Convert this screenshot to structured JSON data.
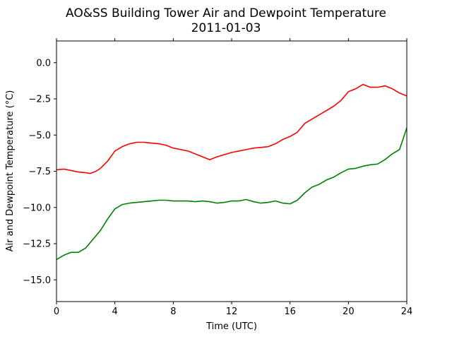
{
  "chart_data": {
    "type": "line",
    "title": "AO&SS Building Tower Air and Dewpoint Temperature",
    "subtitle": "2011-01-03",
    "xlabel": "Time (UTC)",
    "ylabel": "Air and Dewpoint Temperature (°C)",
    "xlim": [
      0,
      24
    ],
    "ylim": [
      -16.5,
      1.5
    ],
    "xticks": [
      0,
      4,
      8,
      12,
      16,
      20,
      24
    ],
    "xtick_labels": [
      "0",
      "4",
      "8",
      "12",
      "16",
      "20",
      "24"
    ],
    "yticks": [
      0.0,
      -2.5,
      -5.0,
      -7.5,
      -10.0,
      -12.5,
      -15.0
    ],
    "ytick_labels": [
      "0.0",
      "−2.5",
      "−5.0",
      "−7.5",
      "−10.0",
      "−12.5",
      "−15.0"
    ],
    "grid": false,
    "legend": "none",
    "series": [
      {
        "color": "#ff0000",
        "x": [
          0,
          0.5,
          1,
          1.5,
          2,
          2.3,
          2.7,
          3,
          3.5,
          4,
          4.5,
          5,
          5.5,
          6,
          6.5,
          7,
          7.5,
          8,
          8.5,
          9,
          9.5,
          10,
          10.5,
          11,
          11.5,
          12,
          12.5,
          13,
          13.5,
          14,
          14.5,
          15,
          15.5,
          16,
          16.5,
          17,
          17.5,
          18,
          18.5,
          19,
          19.5,
          20,
          20.5,
          21,
          21.5,
          22,
          22.5,
          23,
          23.5,
          24
        ],
        "y": [
          -7.4,
          -7.35,
          -7.45,
          -7.55,
          -7.6,
          -7.65,
          -7.5,
          -7.3,
          -6.8,
          -6.1,
          -5.8,
          -5.6,
          -5.5,
          -5.5,
          -5.55,
          -5.6,
          -5.7,
          -5.9,
          -6.0,
          -6.1,
          -6.3,
          -6.5,
          -6.7,
          -6.5,
          -6.35,
          -6.2,
          -6.1,
          -6.0,
          -5.9,
          -5.85,
          -5.8,
          -5.6,
          -5.3,
          -5.1,
          -4.8,
          -4.2,
          -3.9,
          -3.6,
          -3.3,
          -3.0,
          -2.6,
          -2.0,
          -1.8,
          -1.5,
          -1.7,
          -1.7,
          -1.6,
          -1.8,
          -2.1,
          -2.3
        ]
      },
      {
        "color": "#008000",
        "x": [
          0,
          0.5,
          1,
          1.5,
          2,
          2.5,
          3,
          3.5,
          4,
          4.5,
          5,
          5.5,
          6,
          6.5,
          7,
          7.5,
          8,
          8.5,
          9,
          9.5,
          10,
          10.5,
          11,
          11.5,
          12,
          12.5,
          13,
          13.5,
          14,
          14.5,
          15,
          15.5,
          16,
          16.5,
          17,
          17.5,
          18,
          18.5,
          19,
          19.5,
          20,
          20.5,
          21,
          21.5,
          22,
          22.5,
          23,
          23.5,
          24
        ],
        "y": [
          -13.6,
          -13.3,
          -13.1,
          -13.1,
          -12.8,
          -12.2,
          -11.6,
          -10.8,
          -10.1,
          -9.8,
          -9.7,
          -9.65,
          -9.6,
          -9.55,
          -9.5,
          -9.5,
          -9.55,
          -9.55,
          -9.55,
          -9.6,
          -9.55,
          -9.6,
          -9.7,
          -9.65,
          -9.55,
          -9.55,
          -9.45,
          -9.6,
          -9.7,
          -9.65,
          -9.55,
          -9.7,
          -9.75,
          -9.5,
          -9.0,
          -8.6,
          -8.4,
          -8.1,
          -7.9,
          -7.6,
          -7.35,
          -7.3,
          -7.15,
          -7.05,
          -7.0,
          -6.7,
          -6.3,
          -6.0,
          -4.5
        ]
      }
    ]
  }
}
